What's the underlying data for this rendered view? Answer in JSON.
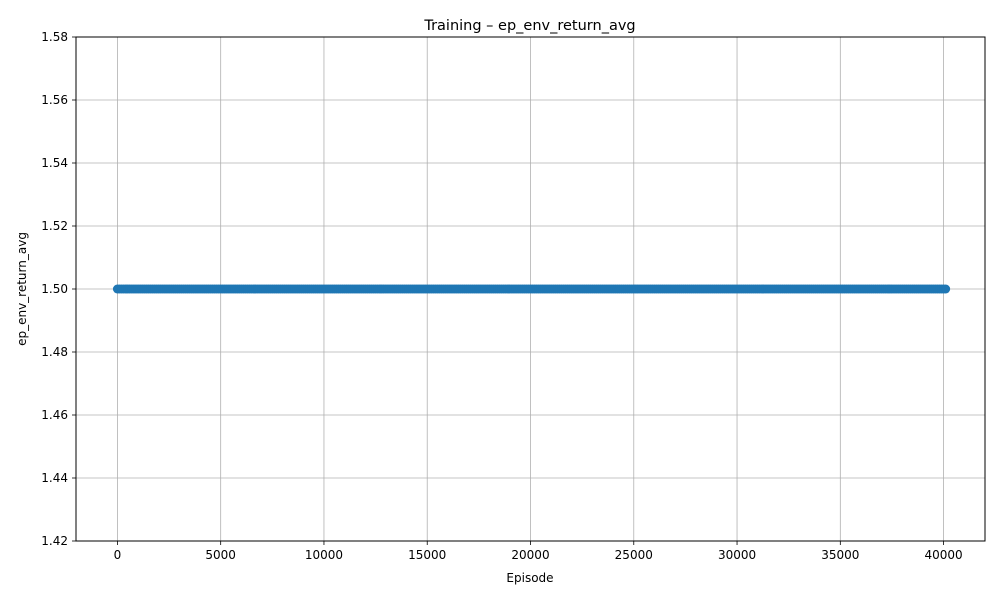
{
  "chart_data": {
    "type": "line",
    "title": "Training – ep_env_return_avg",
    "xlabel": "Episode",
    "ylabel": "ep_env_return_avg",
    "xlim": [
      -2005,
      42005
    ],
    "ylim": [
      1.42,
      1.58
    ],
    "xticks": [
      0,
      5000,
      10000,
      15000,
      20000,
      25000,
      30000,
      35000,
      40000
    ],
    "xtick_labels": [
      "0",
      "5000",
      "10000",
      "15000",
      "20000",
      "25000",
      "30000",
      "35000",
      "40000"
    ],
    "yticks": [
      1.42,
      1.44,
      1.46,
      1.48,
      1.5,
      1.52,
      1.54,
      1.56,
      1.58
    ],
    "ytick_labels": [
      "1.42",
      "1.44",
      "1.46",
      "1.48",
      "1.50",
      "1.52",
      "1.54",
      "1.56",
      "1.58"
    ],
    "grid": true,
    "marker": "circle",
    "series": [
      {
        "color": "#1f77b4",
        "x_start": 0,
        "x_end": 40100,
        "x_step": 100,
        "y": 1.5
      }
    ]
  }
}
